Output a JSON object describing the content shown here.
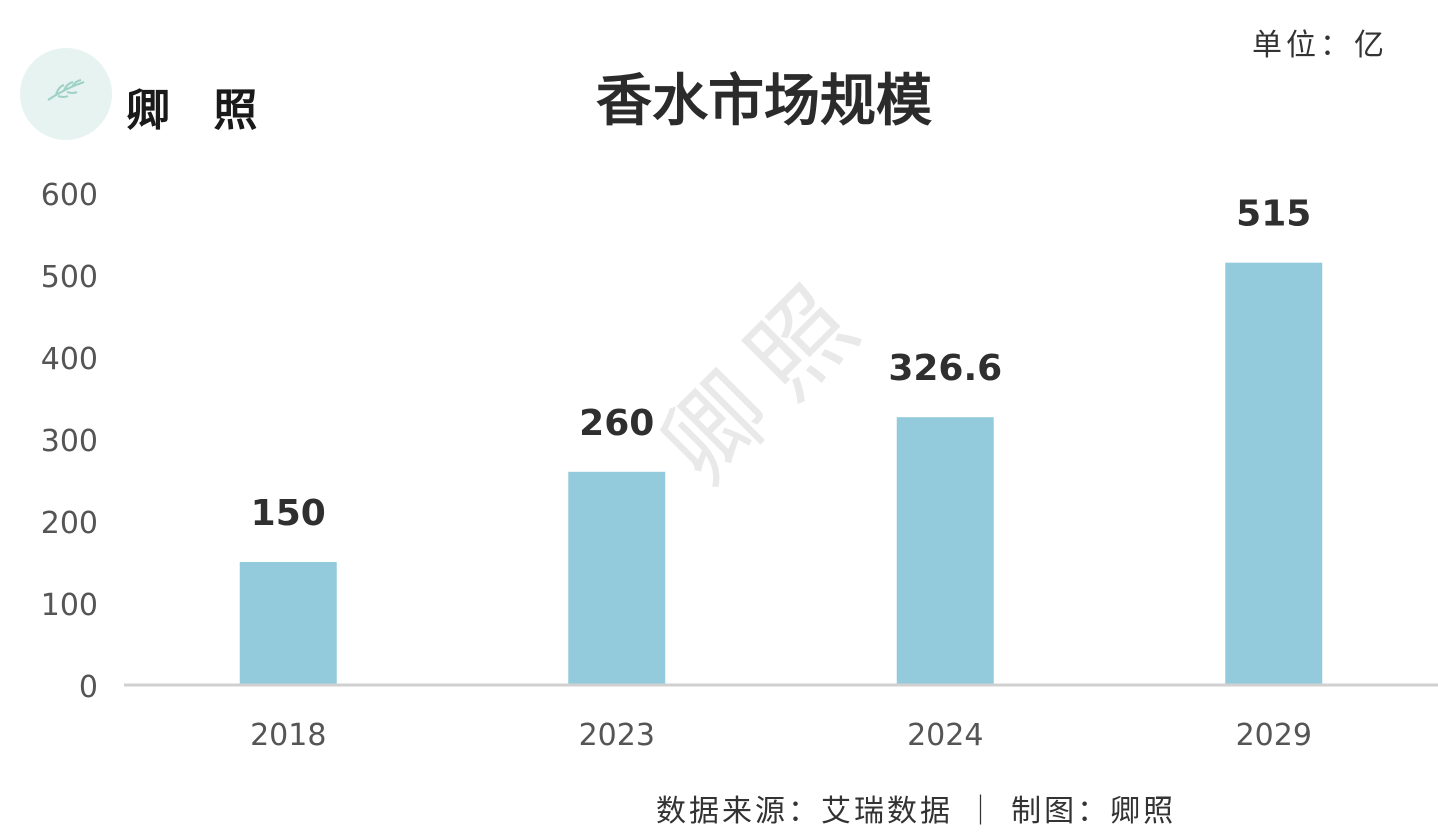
{
  "brand": {
    "name": "卿 照"
  },
  "unit_label": "单位：亿",
  "source_label": "数据来源：艾瑞数据 ｜ 制图：卿照",
  "watermark": "卿照",
  "colors": {
    "bar": "#94cbdc",
    "axis": "#d0d0d0",
    "tick_text": "#555555",
    "data_label": "#2f2f2f"
  },
  "chart_data": {
    "type": "bar",
    "title": "香水市场规模",
    "xlabel": "",
    "ylabel": "",
    "categories": [
      "2018",
      "2023",
      "2024",
      "2029"
    ],
    "values": [
      150,
      260,
      326.6,
      515
    ],
    "data_labels": [
      "150",
      "260",
      "326.6",
      "515"
    ],
    "ylim": [
      0,
      600
    ],
    "yticks": [
      0,
      100,
      200,
      300,
      400,
      500,
      600
    ],
    "grid": false,
    "legend": "none"
  }
}
